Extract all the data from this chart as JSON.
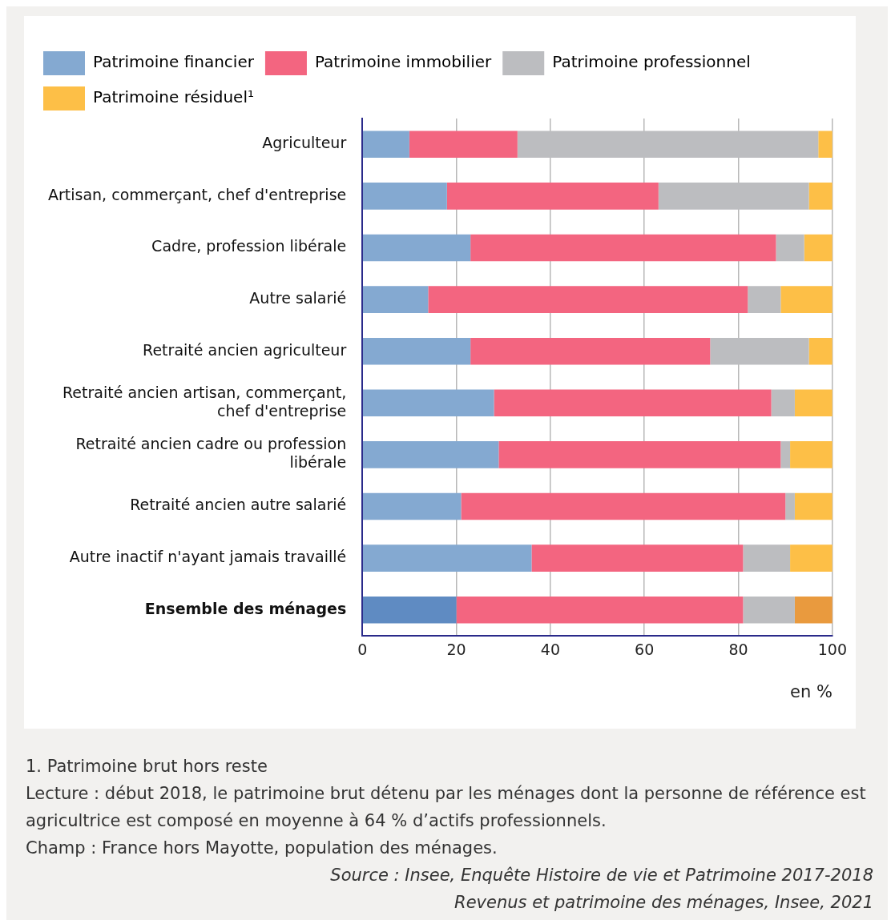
{
  "chart_data": {
    "type": "bar",
    "orientation": "horizontal",
    "stacked": true,
    "xlabel": "en %",
    "categories": [
      "Agriculteur",
      "Artisan, commerçant, chef d'entreprise",
      "Cadre, profession libérale",
      "Autre salarié",
      "Retraité ancien agriculteur",
      "Retraité ancien artisan, commerçant, chef d'entreprise",
      "Retraité ancien cadre ou profession libérale",
      "Retraité ancien autre salarié",
      "Autre inactif n'ayant jamais travaillé",
      "Ensemble des ménages"
    ],
    "series": [
      {
        "name": "Patrimoine financier",
        "color": "#84a9d1",
        "colors": [
          "#84a9d1",
          "#84a9d1",
          "#84a9d1",
          "#84a9d1",
          "#84a9d1",
          "#84a9d1",
          "#84a9d1",
          "#84a9d1",
          "#84a9d1",
          "#5f8bc2"
        ],
        "values": [
          10,
          18,
          23,
          14,
          23,
          28,
          29,
          21,
          36,
          20
        ]
      },
      {
        "name": "Patrimoine immobilier",
        "color": "#f36580",
        "values": [
          23,
          45,
          65,
          68,
          51,
          59,
          60,
          69,
          45,
          61
        ]
      },
      {
        "name": "Patrimoine professionnel",
        "color": "#bcbdc0",
        "values": [
          64,
          32,
          6,
          7,
          21,
          5,
          2,
          2,
          10,
          11
        ]
      },
      {
        "name": "Patrimoine résiduel¹",
        "color": "#fdbf47",
        "colors": [
          "#fdbf47",
          "#fdbf47",
          "#fdbf47",
          "#fdbf47",
          "#fdbf47",
          "#fdbf47",
          "#fdbf47",
          "#fdbf47",
          "#fdbf47",
          "#e99a3e"
        ],
        "values": [
          3,
          5,
          6,
          11,
          5,
          8,
          9,
          8,
          9,
          8
        ]
      }
    ],
    "xlim": [
      0,
      100
    ],
    "xticks": [
      0,
      20,
      40,
      60,
      80,
      100
    ],
    "grid": "x",
    "legend": "top",
    "annotations": [
      "1. Patrimoine brut hors reste",
      "Lecture : début 2018, le patrimoine brut détenu par les ménages dont la personne de référence est agricultrice est composé en moyenne à 64 % d’actifs professionnels.",
      "Champ : France hors Mayotte, population des ménages.",
      "Source : Insee, Enquête Histoire de vie et Patrimoine 2017-2018",
      "Revenus et patrimoine des ménages, Insee, 2021"
    ]
  }
}
